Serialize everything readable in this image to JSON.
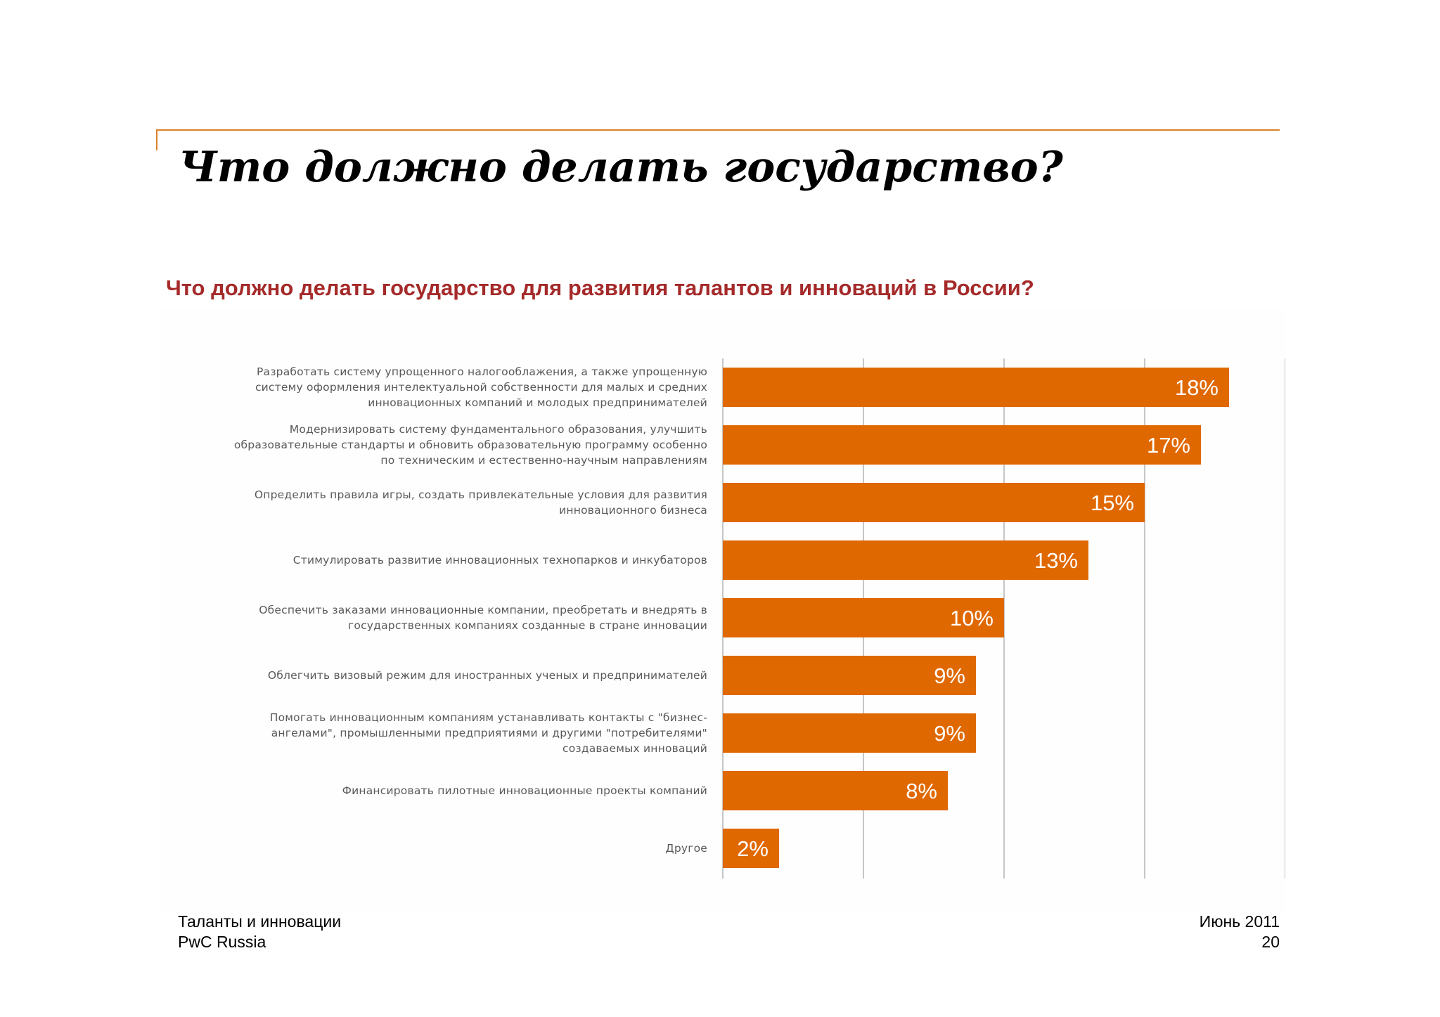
{
  "slide": {
    "title": "Что должно делать государство?"
  },
  "chart_data": {
    "type": "bar",
    "orientation": "horizontal",
    "title": "Что должно делать государство для развития талантов и инноваций в России?",
    "categories": [
      "Разработать систему упрощенного налогооблажения, а также упрощенную систему оформления интелектуальной собственности для малых и средних инновационных компаний и молодых предпринимателей",
      "Модернизировать систему фундаментального образования, улучшить образовательные стандарты и обновить образовательную программу особенно по техническим и естественно-научным направлениям",
      "Определить правила игры, создать привлекательные условия для развития инновационного бизнеса",
      "Стимулировать развитие инновационных технопарков и инкубаторов",
      "Обеспечить заказами инновационные компании, преобретать и внедрять в государственных компаниях созданные в стране инновации",
      "Облегчить визовый режим для иностранных ученых и предпринимателей",
      "Помогать инновационным компаниям устанавливать контакты с \"бизнес-ангелами\", промышленными предприятиями и другими \"потребителями\" создаваемых инноваций",
      "Финансировать пилотные инновационные проекты компаний",
      "Другое"
    ],
    "category_lines": [
      [
        "Разработать систему упрощенного налогооблажения, а также упрощенную",
        "систему оформления интелектуальной собственности для малых и средних",
        "инновационных компаний и молодых предпринимателей"
      ],
      [
        "Модернизировать систему фундаментального образования, улучшить",
        "образовательные стандарты и обновить образовательную программу особенно",
        "по техническим и естественно-научным направлениям"
      ],
      [
        "Определить правила игры, создать привлекательные  условия для развития",
        "инновационного бизнеса"
      ],
      [
        "Стимулировать развитие инновационных технопарков и инкубаторов"
      ],
      [
        "Обеспечить заказами инновационные компании, преобретать и внедрять в",
        "государственных компаниях созданные в стране инновации"
      ],
      [
        "Облегчить визовый режим для иностранных ученых и предпринимателей"
      ],
      [
        "Помогать инновационным компаниям устанавливать контакты с \"бизнес-",
        "ангелами\", промышленными предприятиями и другими \"потребителями\"",
        "создаваемых инноваций"
      ],
      [
        "Финансировать пилотные инновационные проекты компаний"
      ],
      [
        "Другое"
      ]
    ],
    "values": [
      18,
      17,
      15,
      13,
      10,
      9,
      9,
      8,
      2
    ],
    "value_labels": [
      "18%",
      "17%",
      "15%",
      "13%",
      "10%",
      "9%",
      "9%",
      "8%",
      "2%"
    ],
    "xlim": [
      0,
      20
    ],
    "gridlines_x": [
      0,
      5,
      10,
      15,
      20
    ],
    "grid": true,
    "bar_color": "#e06800",
    "gridline_color": "#b3b3b3",
    "label_color": "#595959",
    "xlabel": "",
    "ylabel": ""
  },
  "footer": {
    "report": "Таланты и инновации",
    "company": "PwC Russia",
    "date": "Июнь 2011",
    "page": "20"
  },
  "colors": {
    "accent_line": "#d9822b",
    "subtitle": "#a52a2a"
  }
}
